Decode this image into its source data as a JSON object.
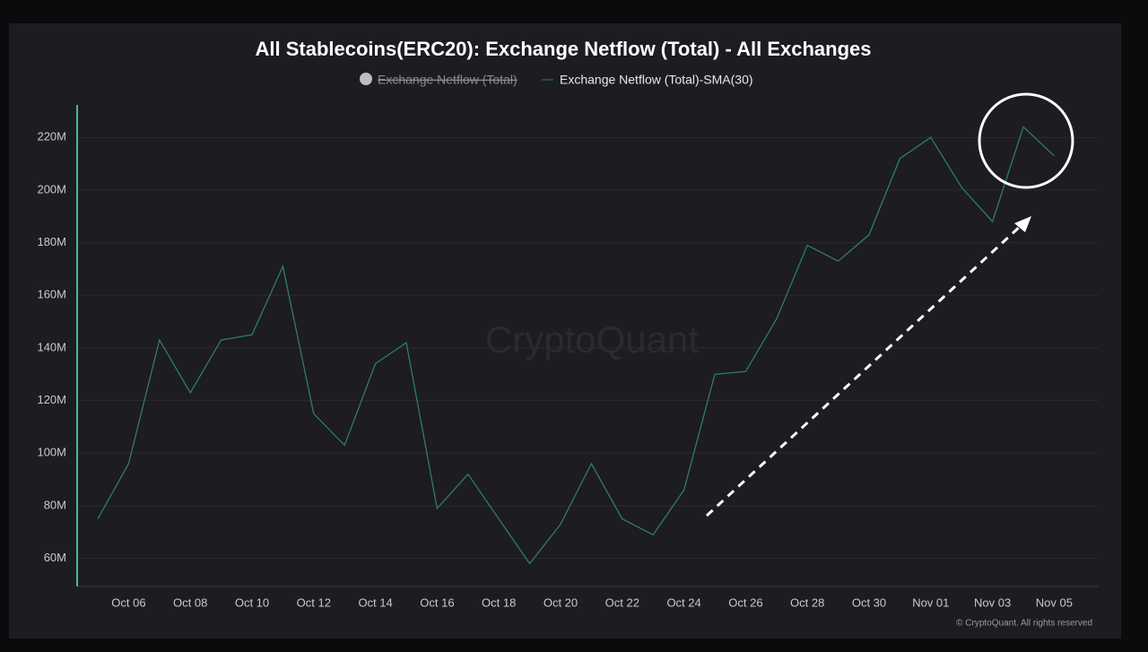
{
  "chart_data": {
    "type": "line",
    "title": "All Stablecoins(ERC20): Exchange Netflow (Total) - All Exchanges",
    "hidden_legend_entry": "Exchange Netflow (Total)",
    "watermark": "CryptoQuant",
    "credit": "© CryptoQuant. All rights reserved",
    "categories": [
      null,
      "Oct 06",
      null,
      "Oct 08",
      null,
      "Oct 10",
      null,
      "Oct 12",
      null,
      "Oct 14",
      null,
      "Oct 16",
      null,
      "Oct 18",
      null,
      "Oct 20",
      null,
      "Oct 22",
      null,
      "Oct 24",
      null,
      "Oct 26",
      null,
      "Oct 28",
      null,
      "Oct 30",
      null,
      "Nov 01",
      null,
      "Nov 03",
      null,
      "Nov 05"
    ],
    "series": [
      {
        "name": "Exchange Netflow (Total)-SMA(30)",
        "color": "#2f7d62",
        "values": [
          75,
          96,
          143,
          123,
          143,
          145,
          171,
          115,
          103,
          134,
          142,
          79,
          92,
          75,
          58,
          73,
          96,
          75,
          69,
          86,
          130,
          131,
          151,
          179,
          173,
          183,
          212,
          220,
          201,
          188,
          224,
          213
        ]
      }
    ],
    "ylim": [
      50,
      232
    ],
    "yticks": [
      {
        "value": 60,
        "label": "60M"
      },
      {
        "value": 80,
        "label": "80M"
      },
      {
        "value": 100,
        "label": "100M"
      },
      {
        "value": 120,
        "label": "120M"
      },
      {
        "value": 140,
        "label": "140M"
      },
      {
        "value": 160,
        "label": "160M"
      },
      {
        "value": 180,
        "label": "180M"
      },
      {
        "value": 200,
        "label": "200M"
      },
      {
        "value": 220,
        "label": "220M"
      }
    ],
    "grid": true
  }
}
